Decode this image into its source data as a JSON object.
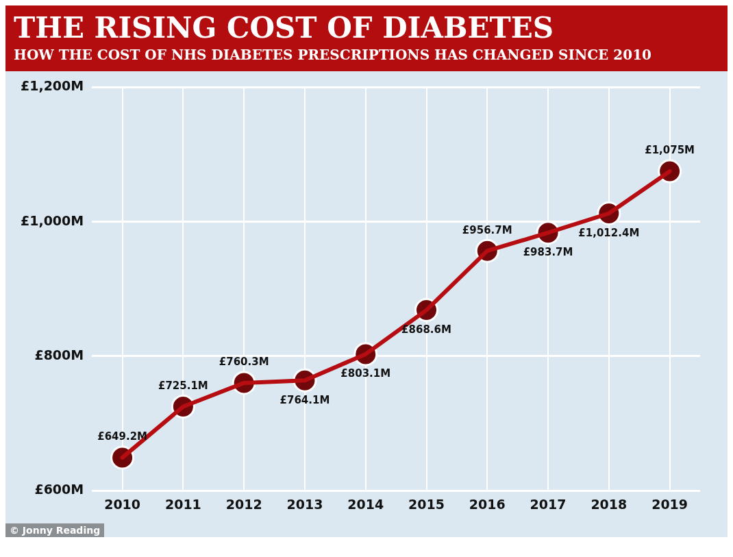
{
  "chart_data": {
    "type": "line",
    "title": "THE RISING COST OF DIABETES",
    "subtitle": "HOW THE COST OF NHS DIABETES PRESCRIPTIONS HAS CHANGED SINCE 2010",
    "categories": [
      "2010",
      "2011",
      "2012",
      "2013",
      "2014",
      "2015",
      "2016",
      "2017",
      "2018",
      "2019"
    ],
    "series": [
      {
        "color": "#b50d12",
        "values": [
          649.2,
          725.1,
          760.3,
          764.1,
          803.1,
          868.6,
          956.7,
          983.7,
          1012.4,
          1075
        ],
        "value_labels": [
          "£649.2M",
          "£725.1M",
          "£760.3M",
          "£764.1M",
          "£803.1M",
          "£868.6M",
          "£956.7M",
          "£983.7M",
          "£1,012.4M",
          "£1,075M"
        ]
      }
    ],
    "ylim": [
      600,
      1200
    ],
    "yticks": [
      {
        "value": 600,
        "label": "£600M"
      },
      {
        "value": 800,
        "label": "£800M"
      },
      {
        "value": 1000,
        "label": "£1,000M"
      },
      {
        "value": 1200,
        "label": "£1,200M"
      }
    ],
    "grid": true,
    "legend": false,
    "marker": "circle",
    "line_style": "solid",
    "annotations": [
      "© Jonny Reading"
    ]
  }
}
